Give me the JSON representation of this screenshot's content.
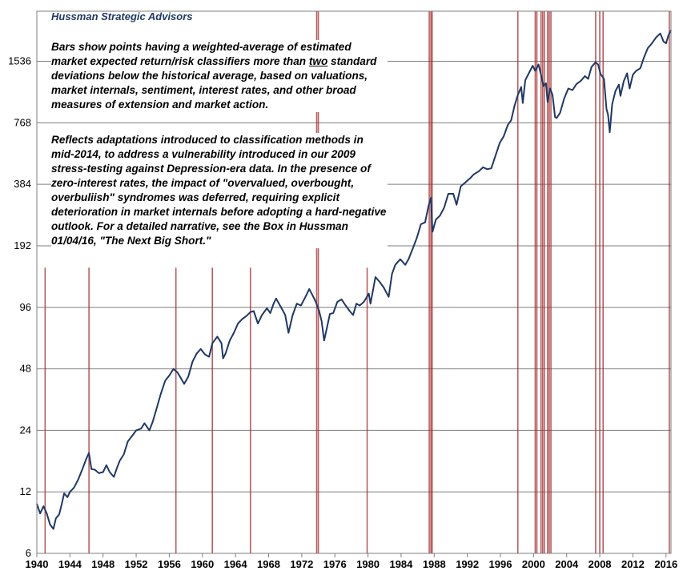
{
  "chart_data": {
    "type": "line",
    "title": "Hussman Strategic Advisors",
    "notes": {
      "p1_a": "Bars show points having a weighted-average of estimated market expected return/risk classifiers more than ",
      "p1_emph": "two",
      "p1_b": " standard deviations below the historical average, based on valuations, market internals, sentiment, interest rates, and other broad measures of extension and market action.",
      "p2": "Reflects adaptations introduced to classification  methods in mid-2014, to address a vulnerability introduced in our 2009 stress-testing against Depression-era data.  In the presence of zero-interest rates, the impact of \"overvalued, overbought, overbuliish\" syndromes was deferred, requiring explicit deterioration in market internals before adopting a hard-negative outlook. For a detailed narrative, see the Box in Hussman 01/04/16, \"The Next Big Short.\""
    },
    "y_scale": "log2",
    "ylim": [
      6,
      2700
    ],
    "yticks": [
      6,
      12,
      24,
      48,
      96,
      192,
      384,
      768,
      1536
    ],
    "xlim": [
      1940,
      2016.6
    ],
    "xticks": [
      1940,
      1944,
      1948,
      1952,
      1956,
      1960,
      1964,
      1968,
      1972,
      1976,
      1980,
      1984,
      1988,
      1992,
      1996,
      2000,
      2004,
      2008,
      2012,
      2016
    ],
    "grid": true,
    "series": [
      {
        "points": [
          [
            1940.0,
            10.5
          ],
          [
            1940.4,
            9.4
          ],
          [
            1940.8,
            10.2
          ],
          [
            1941.2,
            9.4
          ],
          [
            1941.6,
            8.3
          ],
          [
            1942.0,
            7.9
          ],
          [
            1942.3,
            8.9
          ],
          [
            1942.7,
            9.3
          ],
          [
            1943.0,
            10.4
          ],
          [
            1943.3,
            11.8
          ],
          [
            1943.7,
            11.3
          ],
          [
            1944.0,
            12.0
          ],
          [
            1944.5,
            12.6
          ],
          [
            1945.0,
            13.8
          ],
          [
            1945.5,
            15.5
          ],
          [
            1946.0,
            17.5
          ],
          [
            1946.3,
            18.6
          ],
          [
            1946.6,
            15.5
          ],
          [
            1947.0,
            15.4
          ],
          [
            1947.5,
            14.8
          ],
          [
            1948.0,
            15.0
          ],
          [
            1948.4,
            16.2
          ],
          [
            1948.8,
            15.0
          ],
          [
            1949.3,
            14.2
          ],
          [
            1949.7,
            15.8
          ],
          [
            1950.0,
            17.0
          ],
          [
            1950.5,
            18.3
          ],
          [
            1951.0,
            21.2
          ],
          [
            1951.5,
            22.5
          ],
          [
            1952.0,
            24.0
          ],
          [
            1952.6,
            24.5
          ],
          [
            1953.0,
            26.0
          ],
          [
            1953.6,
            24.0
          ],
          [
            1954.0,
            26.5
          ],
          [
            1954.5,
            31.0
          ],
          [
            1955.0,
            36.5
          ],
          [
            1955.5,
            42.0
          ],
          [
            1956.0,
            44.5
          ],
          [
            1956.5,
            48.0
          ],
          [
            1957.0,
            46.0
          ],
          [
            1957.8,
            40.5
          ],
          [
            1958.3,
            44.0
          ],
          [
            1958.8,
            52.0
          ],
          [
            1959.3,
            57.0
          ],
          [
            1959.8,
            60.0
          ],
          [
            1960.3,
            56.5
          ],
          [
            1960.8,
            55.0
          ],
          [
            1961.2,
            64.0
          ],
          [
            1961.8,
            69.0
          ],
          [
            1962.3,
            64.0
          ],
          [
            1962.5,
            54.0
          ],
          [
            1962.8,
            57.0
          ],
          [
            1963.3,
            66.0
          ],
          [
            1963.8,
            72.0
          ],
          [
            1964.3,
            80.0
          ],
          [
            1964.8,
            84.0
          ],
          [
            1965.3,
            87.0
          ],
          [
            1965.8,
            91.0
          ],
          [
            1966.2,
            92.0
          ],
          [
            1966.7,
            80.0
          ],
          [
            1967.2,
            88.0
          ],
          [
            1967.8,
            95.0
          ],
          [
            1968.2,
            90.0
          ],
          [
            1968.6,
            100.0
          ],
          [
            1968.9,
            106.0
          ],
          [
            1969.5,
            96.0
          ],
          [
            1970.0,
            88.0
          ],
          [
            1970.4,
            72.0
          ],
          [
            1970.9,
            88.0
          ],
          [
            1971.4,
            100.0
          ],
          [
            1971.9,
            98.0
          ],
          [
            1972.4,
            107.0
          ],
          [
            1972.9,
            118.0
          ],
          [
            1973.3,
            110.0
          ],
          [
            1973.7,
            102.0
          ],
          [
            1974.1,
            92.0
          ],
          [
            1974.4,
            82.0
          ],
          [
            1974.7,
            66.0
          ],
          [
            1975.0,
            75.0
          ],
          [
            1975.4,
            89.0
          ],
          [
            1975.8,
            90.0
          ],
          [
            1976.3,
            102.0
          ],
          [
            1976.8,
            105.0
          ],
          [
            1977.3,
            98.0
          ],
          [
            1977.8,
            92.0
          ],
          [
            1978.2,
            88.0
          ],
          [
            1978.6,
            100.0
          ],
          [
            1979.0,
            98.0
          ],
          [
            1979.5,
            102.0
          ],
          [
            1980.1,
            112.0
          ],
          [
            1980.3,
            100.0
          ],
          [
            1980.9,
            135.0
          ],
          [
            1981.4,
            128.0
          ],
          [
            1981.9,
            120.0
          ],
          [
            1982.5,
            108.0
          ],
          [
            1982.9,
            140.0
          ],
          [
            1983.3,
            155.0
          ],
          [
            1983.9,
            165.0
          ],
          [
            1984.5,
            155.0
          ],
          [
            1984.9,
            165.0
          ],
          [
            1985.5,
            190.0
          ],
          [
            1985.9,
            210.0
          ],
          [
            1986.4,
            245.0
          ],
          [
            1986.9,
            250.0
          ],
          [
            1987.3,
            300.0
          ],
          [
            1987.6,
            330.0
          ],
          [
            1987.8,
            225.0
          ],
          [
            1988.2,
            258.0
          ],
          [
            1988.7,
            270.0
          ],
          [
            1989.2,
            295.0
          ],
          [
            1989.7,
            345.0
          ],
          [
            1990.3,
            345.0
          ],
          [
            1990.7,
            305.0
          ],
          [
            1991.2,
            375.0
          ],
          [
            1991.7,
            390.0
          ],
          [
            1992.3,
            410.0
          ],
          [
            1992.8,
            430.0
          ],
          [
            1993.4,
            445.0
          ],
          [
            1993.9,
            465.0
          ],
          [
            1994.4,
            455.0
          ],
          [
            1994.9,
            460.0
          ],
          [
            1995.4,
            530.0
          ],
          [
            1995.9,
            610.0
          ],
          [
            1996.4,
            660.0
          ],
          [
            1996.9,
            750.0
          ],
          [
            1997.3,
            790.0
          ],
          [
            1997.7,
            930.0
          ],
          [
            1998.1,
            1050.0
          ],
          [
            1998.5,
            1150.0
          ],
          [
            1998.7,
            960.0
          ],
          [
            1999.0,
            1240.0
          ],
          [
            1999.5,
            1360.0
          ],
          [
            1999.9,
            1460.0
          ],
          [
            2000.2,
            1380.0
          ],
          [
            2000.6,
            1480.0
          ],
          [
            2000.9,
            1320.0
          ],
          [
            2001.2,
            1160.0
          ],
          [
            2001.5,
            1200.0
          ],
          [
            2001.7,
            970.0
          ],
          [
            2002.0,
            1130.0
          ],
          [
            2002.3,
            1050.0
          ],
          [
            2002.6,
            820.0
          ],
          [
            2002.8,
            810.0
          ],
          [
            2003.2,
            860.0
          ],
          [
            2003.7,
            1010.0
          ],
          [
            2004.2,
            1130.0
          ],
          [
            2004.7,
            1110.0
          ],
          [
            2005.2,
            1190.0
          ],
          [
            2005.7,
            1230.0
          ],
          [
            2006.2,
            1300.0
          ],
          [
            2006.6,
            1260.0
          ],
          [
            2007.0,
            1440.0
          ],
          [
            2007.5,
            1520.0
          ],
          [
            2007.8,
            1480.0
          ],
          [
            2008.1,
            1330.0
          ],
          [
            2008.5,
            1260.0
          ],
          [
            2008.8,
            900.0
          ],
          [
            2009.0,
            840.0
          ],
          [
            2009.2,
            690.0
          ],
          [
            2009.5,
            950.0
          ],
          [
            2009.9,
            1100.0
          ],
          [
            2010.3,
            1180.0
          ],
          [
            2010.5,
            1040.0
          ],
          [
            2010.9,
            1230.0
          ],
          [
            2011.3,
            1340.0
          ],
          [
            2011.6,
            1130.0
          ],
          [
            2012.0,
            1320.0
          ],
          [
            2012.4,
            1380.0
          ],
          [
            2012.9,
            1420.0
          ],
          [
            2013.3,
            1590.0
          ],
          [
            2013.8,
            1780.0
          ],
          [
            2014.3,
            1880.0
          ],
          [
            2014.8,
            2010.0
          ],
          [
            2015.3,
            2100.0
          ],
          [
            2015.7,
            1920.0
          ],
          [
            2016.0,
            1880.0
          ],
          [
            2016.3,
            2060.0
          ],
          [
            2016.6,
            2180.0
          ]
        ]
      }
    ],
    "bars": [
      1941.0,
      1946.3,
      1956.8,
      1961.2,
      1965.8,
      1973.8,
      1974.0,
      1979.9,
      1987.4,
      1987.6,
      1987.75,
      1998.1,
      2000.2,
      2000.4,
      2000.9,
      2001.1,
      2001.3,
      2001.7,
      2001.9,
      2002.1,
      2007.5,
      2008.0,
      2008.4,
      2016.4
    ],
    "short_bars": [
      1941.0,
      1946.3,
      1956.8,
      1961.2,
      1965.8,
      1979.9
    ]
  },
  "style": {
    "line_color": "#1f3864",
    "bar_color": "#a0282a",
    "grid_color": "#7f7f7f",
    "frame_color": "#7f7f7f"
  }
}
